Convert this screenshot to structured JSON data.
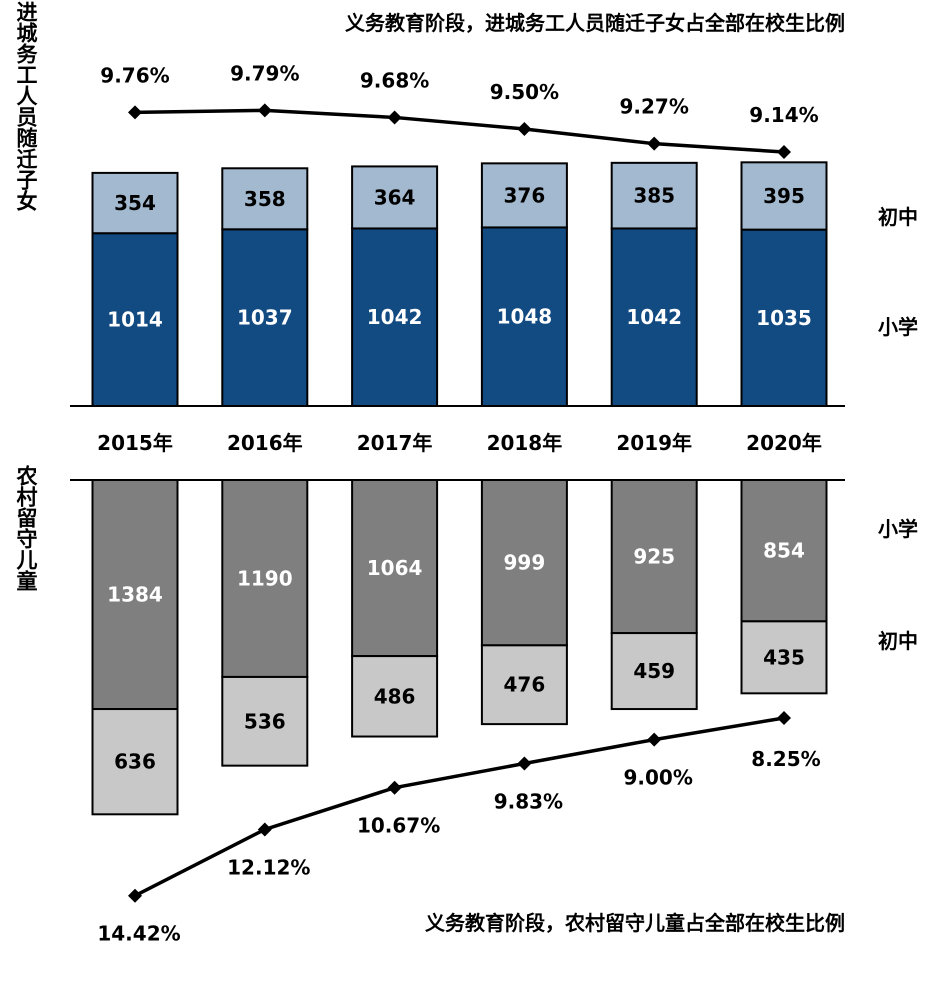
{
  "chart_data": {
    "type": "bar",
    "categories": [
      "2015年",
      "2016年",
      "2017年",
      "2018年",
      "2019年",
      "2020年"
    ],
    "top": {
      "title": "义务教育阶段，进城务工人员随迁子女占全部在校生比例",
      "group_label": "进城务工人员随迁子女",
      "series": [
        {
          "name": "小学",
          "values": [
            1014,
            1037,
            1042,
            1048,
            1042,
            1035
          ],
          "color": "#124a82"
        },
        {
          "name": "初中",
          "values": [
            354,
            358,
            364,
            376,
            385,
            395
          ],
          "color": "#a3b9cf"
        }
      ],
      "ratio": [
        "9.76%",
        "9.79%",
        "9.68%",
        "9.50%",
        "9.27%",
        "9.14%"
      ],
      "ratio_values": [
        9.76,
        9.79,
        9.68,
        9.5,
        9.27,
        9.14
      ]
    },
    "bottom": {
      "title": "义务教育阶段，农村留守儿童占全部在校生比例",
      "group_label": "农村留守儿童",
      "series": [
        {
          "name": "小学",
          "values": [
            1384,
            1190,
            1064,
            999,
            925,
            854
          ],
          "color": "#7f7f7f"
        },
        {
          "name": "初中",
          "values": [
            636,
            536,
            486,
            476,
            459,
            435
          ],
          "color": "#c8c8c8"
        }
      ],
      "ratio": [
        "14.42%",
        "12.12%",
        "10.67%",
        "9.83%",
        "9.00%",
        "8.25%"
      ],
      "ratio_values": [
        14.42,
        12.12,
        10.67,
        9.83,
        9.0,
        8.25
      ]
    }
  }
}
